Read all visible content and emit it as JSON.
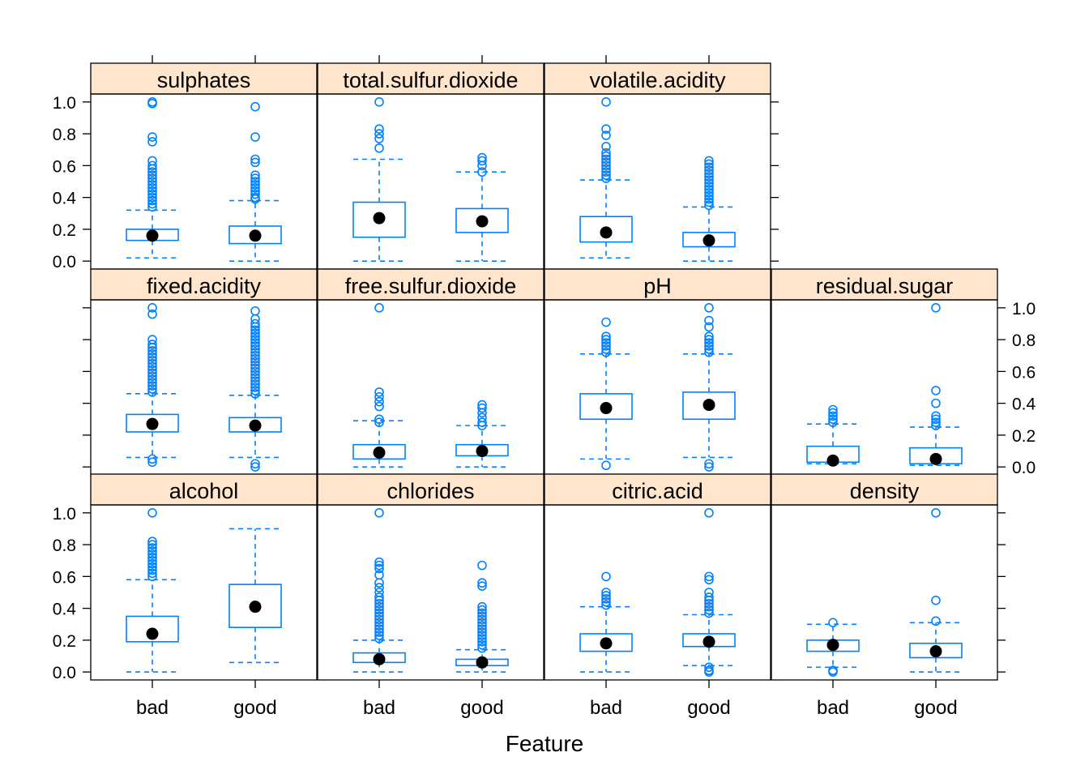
{
  "chart_data": {
    "type": "boxplot",
    "layout": "lattice 4 columns x 3 rows",
    "xlabel": "Feature",
    "ylabel": "",
    "categories": [
      "bad",
      "good"
    ],
    "ylim": [
      -0.05,
      1.05
    ],
    "y_ticks": [
      0.0,
      0.2,
      0.4,
      0.6,
      0.8,
      1.0
    ],
    "y_tick_labels": [
      "0.0",
      "0.2",
      "0.4",
      "0.6",
      "0.8",
      "1.0"
    ],
    "colors": {
      "box": "#0080ff",
      "median_dot": "#000000",
      "strip_fill": "#ffe5cc",
      "frame": "#000000"
    },
    "panels": [
      {
        "feature": "sulphates",
        "row": 0,
        "col": 0,
        "groups": [
          {
            "category": "bad",
            "whisker_low": 0.02,
            "q1": 0.13,
            "median": 0.16,
            "q3": 0.2,
            "whisker_high": 0.32,
            "outliers": [
              0.34,
              0.36,
              0.38,
              0.4,
              0.42,
              0.44,
              0.46,
              0.48,
              0.5,
              0.52,
              0.54,
              0.56,
              0.58,
              0.6,
              0.63,
              0.75,
              0.78,
              0.99,
              1.0
            ]
          },
          {
            "category": "good",
            "whisker_low": 0.0,
            "q1": 0.11,
            "median": 0.16,
            "q3": 0.22,
            "whisker_high": 0.38,
            "outliers": [
              0.39,
              0.4,
              0.42,
              0.44,
              0.46,
              0.48,
              0.5,
              0.52,
              0.54,
              0.62,
              0.64,
              0.78,
              0.97
            ]
          }
        ]
      },
      {
        "feature": "total.sulfur.dioxide",
        "row": 0,
        "col": 1,
        "groups": [
          {
            "category": "bad",
            "whisker_low": 0.0,
            "q1": 0.15,
            "median": 0.27,
            "q3": 0.37,
            "whisker_high": 0.64,
            "outliers": [
              0.71,
              0.77,
              0.8,
              0.83,
              1.0
            ]
          },
          {
            "category": "good",
            "whisker_low": 0.0,
            "q1": 0.18,
            "median": 0.25,
            "q3": 0.33,
            "whisker_high": 0.56,
            "outliers": [
              0.56,
              0.6,
              0.63,
              0.65
            ]
          }
        ]
      },
      {
        "feature": "volatile.acidity",
        "row": 0,
        "col": 2,
        "groups": [
          {
            "category": "bad",
            "whisker_low": 0.02,
            "q1": 0.12,
            "median": 0.18,
            "q3": 0.28,
            "whisker_high": 0.51,
            "outliers": [
              0.52,
              0.54,
              0.56,
              0.58,
              0.6,
              0.62,
              0.64,
              0.66,
              0.68,
              0.72,
              0.79,
              0.83,
              1.0
            ]
          },
          {
            "category": "good",
            "whisker_low": 0.0,
            "q1": 0.09,
            "median": 0.13,
            "q3": 0.18,
            "whisker_high": 0.34,
            "outliers": [
              0.35,
              0.37,
              0.39,
              0.41,
              0.43,
              0.45,
              0.47,
              0.49,
              0.51,
              0.53,
              0.55,
              0.57,
              0.59,
              0.61,
              0.63
            ]
          }
        ]
      },
      {
        "feature": "fixed.acidity",
        "row": 1,
        "col": 0,
        "groups": [
          {
            "category": "bad",
            "whisker_low": 0.06,
            "q1": 0.22,
            "median": 0.27,
            "q3": 0.33,
            "whisker_high": 0.46,
            "outliers": [
              0.03,
              0.05,
              0.47,
              0.49,
              0.51,
              0.53,
              0.55,
              0.57,
              0.59,
              0.61,
              0.63,
              0.65,
              0.67,
              0.69,
              0.71,
              0.73,
              0.75,
              0.77,
              0.8,
              0.96,
              1.0
            ]
          },
          {
            "category": "good",
            "whisker_low": 0.06,
            "q1": 0.22,
            "median": 0.26,
            "q3": 0.31,
            "whisker_high": 0.45,
            "outliers": [
              0.0,
              0.02,
              0.46,
              0.48,
              0.5,
              0.52,
              0.54,
              0.56,
              0.58,
              0.6,
              0.62,
              0.64,
              0.66,
              0.68,
              0.7,
              0.72,
              0.74,
              0.76,
              0.78,
              0.8,
              0.82,
              0.84,
              0.86,
              0.88,
              0.9,
              0.93,
              0.98
            ]
          }
        ]
      },
      {
        "feature": "free.sulfur.dioxide",
        "row": 1,
        "col": 1,
        "groups": [
          {
            "category": "bad",
            "whisker_low": 0.0,
            "q1": 0.05,
            "median": 0.09,
            "q3": 0.14,
            "whisker_high": 0.29,
            "outliers": [
              0.28,
              0.3,
              0.38,
              0.41,
              0.44,
              0.47,
              1.0
            ]
          },
          {
            "category": "good",
            "whisker_low": 0.0,
            "q1": 0.07,
            "median": 0.1,
            "q3": 0.14,
            "whisker_high": 0.26,
            "outliers": [
              0.26,
              0.28,
              0.31,
              0.34,
              0.37,
              0.39
            ]
          }
        ]
      },
      {
        "feature": "pH",
        "row": 1,
        "col": 2,
        "groups": [
          {
            "category": "bad",
            "whisker_low": 0.05,
            "q1": 0.3,
            "median": 0.37,
            "q3": 0.46,
            "whisker_high": 0.71,
            "outliers": [
              0.01,
              0.72,
              0.74,
              0.76,
              0.78,
              0.8,
              0.82,
              0.91
            ]
          },
          {
            "category": "good",
            "whisker_low": 0.06,
            "q1": 0.3,
            "median": 0.39,
            "q3": 0.47,
            "whisker_high": 0.71,
            "outliers": [
              0.0,
              0.02,
              0.72,
              0.74,
              0.76,
              0.78,
              0.8,
              0.82,
              0.88,
              0.92,
              1.0
            ]
          }
        ]
      },
      {
        "feature": "residual.sugar",
        "row": 1,
        "col": 3,
        "groups": [
          {
            "category": "bad",
            "whisker_low": 0.02,
            "q1": 0.03,
            "median": 0.04,
            "q3": 0.13,
            "whisker_high": 0.27,
            "outliers": [
              0.28,
              0.3,
              0.32,
              0.34,
              0.36
            ]
          },
          {
            "category": "good",
            "whisker_low": 0.01,
            "q1": 0.02,
            "median": 0.05,
            "q3": 0.12,
            "whisker_high": 0.25,
            "outliers": [
              0.26,
              0.28,
              0.3,
              0.32,
              0.4,
              0.48,
              1.0
            ]
          }
        ]
      },
      {
        "feature": "alcohol",
        "row": 2,
        "col": 0,
        "groups": [
          {
            "category": "bad",
            "whisker_low": 0.0,
            "q1": 0.19,
            "median": 0.24,
            "q3": 0.35,
            "whisker_high": 0.58,
            "outliers": [
              0.6,
              0.62,
              0.64,
              0.66,
              0.68,
              0.7,
              0.72,
              0.74,
              0.76,
              0.78,
              0.8,
              0.82,
              1.0
            ]
          },
          {
            "category": "good",
            "whisker_low": 0.06,
            "q1": 0.28,
            "median": 0.41,
            "q3": 0.55,
            "whisker_high": 0.9,
            "outliers": []
          }
        ]
      },
      {
        "feature": "chlorides",
        "row": 2,
        "col": 1,
        "groups": [
          {
            "category": "bad",
            "whisker_low": 0.0,
            "q1": 0.06,
            "median": 0.08,
            "q3": 0.12,
            "whisker_high": 0.2,
            "outliers": [
              0.21,
              0.23,
              0.25,
              0.27,
              0.29,
              0.31,
              0.33,
              0.35,
              0.37,
              0.39,
              0.41,
              0.43,
              0.45,
              0.47,
              0.5,
              0.53,
              0.56,
              0.61,
              0.65,
              0.67,
              0.69,
              1.0
            ]
          },
          {
            "category": "good",
            "whisker_low": 0.0,
            "q1": 0.04,
            "median": 0.06,
            "q3": 0.08,
            "whisker_high": 0.14,
            "outliers": [
              0.15,
              0.17,
              0.19,
              0.21,
              0.23,
              0.25,
              0.27,
              0.29,
              0.31,
              0.33,
              0.35,
              0.37,
              0.39,
              0.41,
              0.54,
              0.56,
              0.67
            ]
          }
        ]
      },
      {
        "feature": "citric.acid",
        "row": 2,
        "col": 2,
        "groups": [
          {
            "category": "bad",
            "whisker_low": 0.0,
            "q1": 0.13,
            "median": 0.18,
            "q3": 0.24,
            "whisker_high": 0.41,
            "outliers": [
              0.42,
              0.44,
              0.46,
              0.48,
              0.5,
              0.6
            ]
          },
          {
            "category": "good",
            "whisker_low": 0.04,
            "q1": 0.16,
            "median": 0.19,
            "q3": 0.24,
            "whisker_high": 0.36,
            "outliers": [
              0.0,
              0.01,
              0.03,
              0.37,
              0.39,
              0.41,
              0.43,
              0.45,
              0.47,
              0.5,
              0.58,
              0.6,
              1.0
            ]
          }
        ]
      },
      {
        "feature": "density",
        "row": 2,
        "col": 3,
        "groups": [
          {
            "category": "bad",
            "whisker_low": 0.03,
            "q1": 0.13,
            "median": 0.17,
            "q3": 0.2,
            "whisker_high": 0.3,
            "outliers": [
              0.0,
              0.01,
              0.31
            ]
          },
          {
            "category": "good",
            "whisker_low": 0.0,
            "q1": 0.09,
            "median": 0.13,
            "q3": 0.18,
            "whisker_high": 0.31,
            "outliers": [
              0.32,
              0.45,
              1.0
            ]
          }
        ]
      }
    ]
  }
}
